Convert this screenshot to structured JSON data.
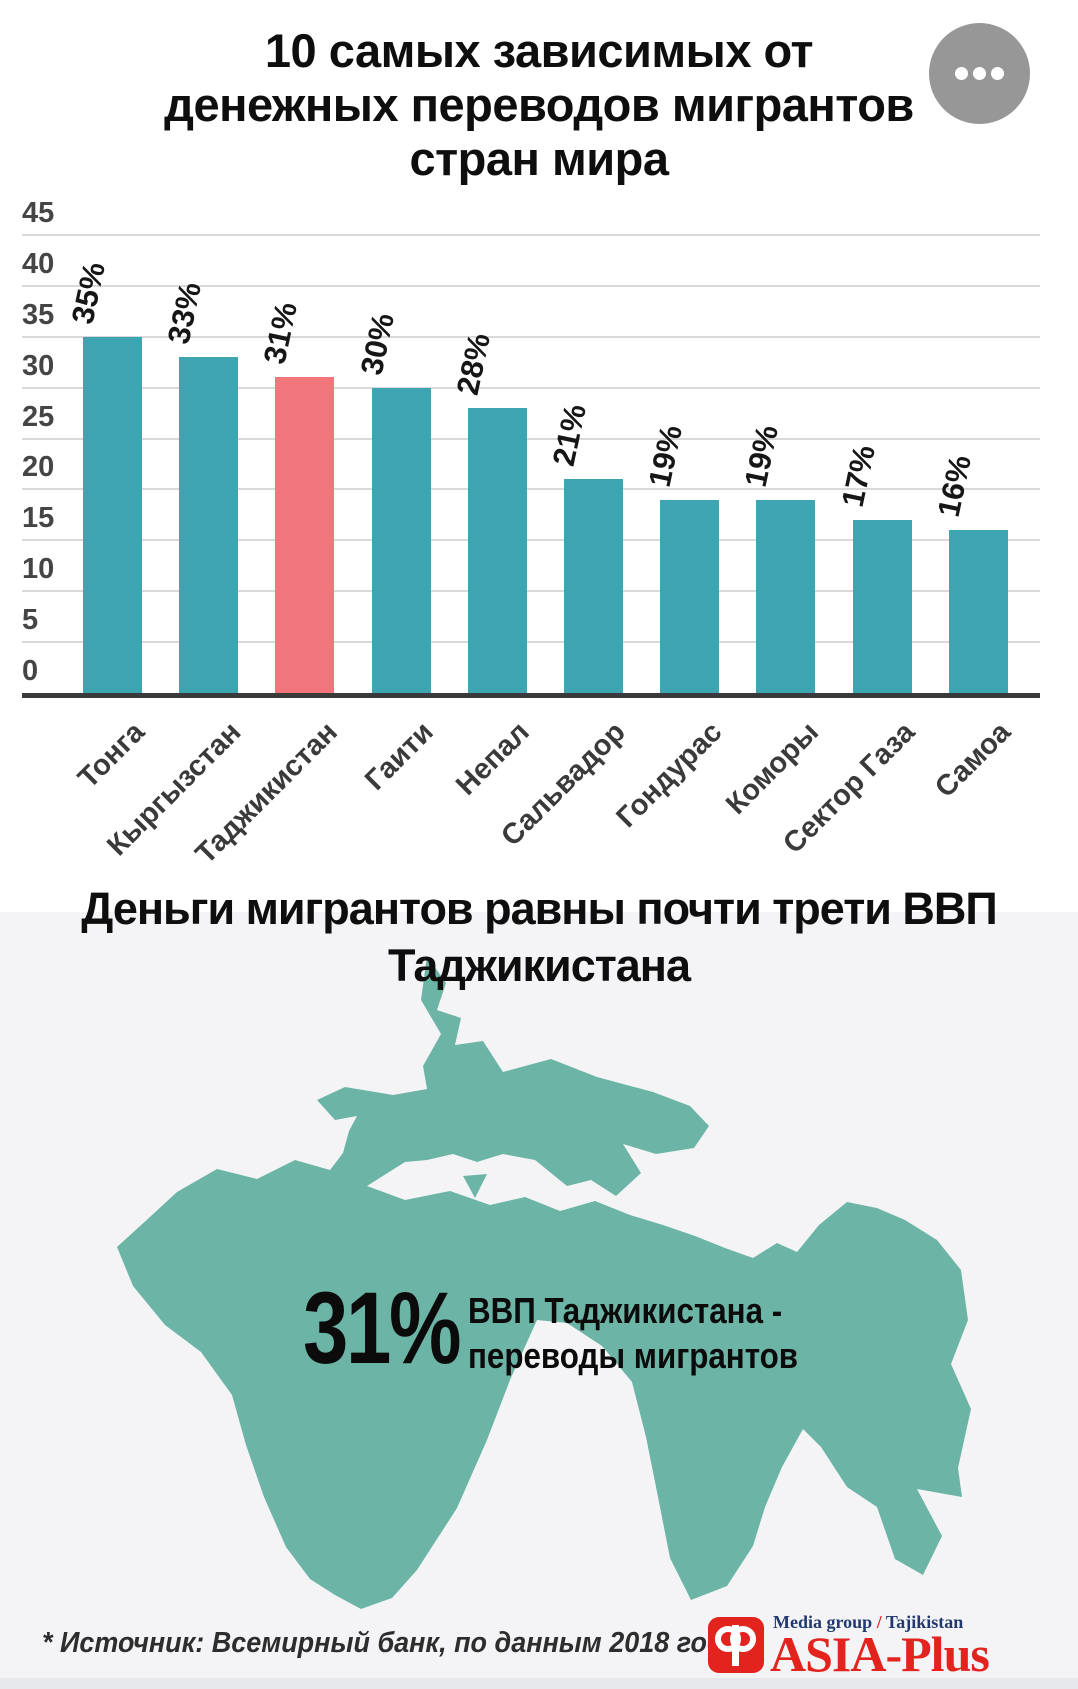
{
  "header": {
    "title_lines": [
      "10 самых зависимых от",
      "денежных переводов мигрантов",
      "стран мира"
    ]
  },
  "chart_data": {
    "type": "bar",
    "title": "10 самых зависимых от денежных переводов мигрантов стран мира",
    "categories": [
      "Тонга",
      "Кыргызстан",
      "Таджикистан",
      "Гаити",
      "Непал",
      "Сальвадор",
      "Гондурас",
      "Коморы",
      "Сектор Газа",
      "Самоа"
    ],
    "values": [
      35,
      33,
      31,
      30,
      28,
      21,
      19,
      19,
      17,
      16
    ],
    "value_labels": [
      "35%",
      "33%",
      "31%",
      "30%",
      "28%",
      "21%",
      "19%",
      "19%",
      "17%",
      "16%"
    ],
    "highlight_category": "Таджикистан",
    "highlight_index": 2,
    "yticks": [
      0,
      5,
      10,
      15,
      20,
      25,
      30,
      35,
      40,
      45
    ],
    "ylim": [
      0,
      45
    ],
    "xlabel": "",
    "ylabel": "",
    "grid": true,
    "legend": "none",
    "bar_color": "#3CA5B1",
    "highlight_color": "#F0767B"
  },
  "section2": {
    "title_lines": [
      "Деньги мигрантов равны почти трети ВВП",
      "Таджикистана"
    ],
    "stat_value": "31%",
    "stat_label_lines": [
      "ВВП Таджикистана -",
      "переводы мигрантов"
    ],
    "map_color": "#6CB5A6"
  },
  "footer": {
    "source_note": "* Источник: Всемирный банк, по данным 2018 года",
    "logo": {
      "tagline_left": "Media group",
      "tagline_slash": "/",
      "tagline_right": "Tajikistan",
      "brand": "ASIA-Plus"
    }
  },
  "colors": {
    "bar": "#3CA5B1",
    "highlight": "#F0767B",
    "map": "#6CB5A6",
    "logo_red": "#E2231E",
    "logo_navy": "#21396E",
    "section_bg": "#F4F4F6",
    "axis": "#3A3A3A",
    "gridline": "#D9D9D9"
  }
}
